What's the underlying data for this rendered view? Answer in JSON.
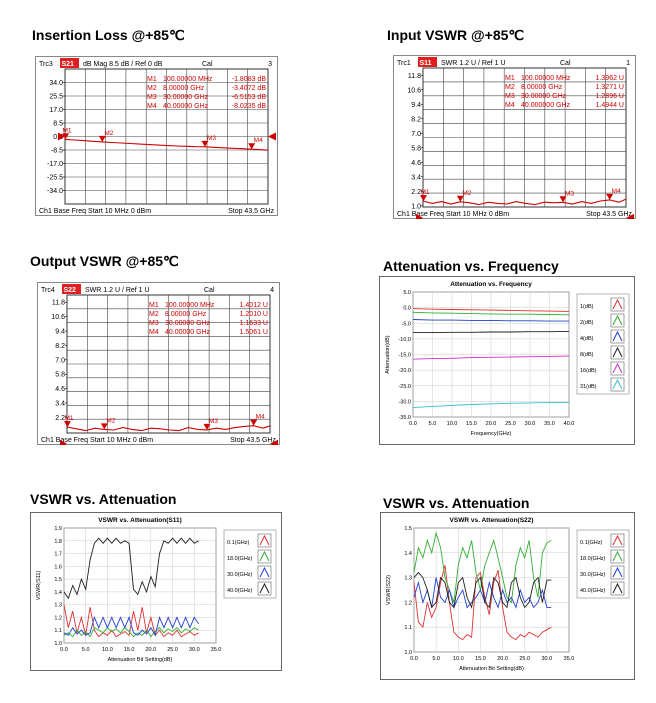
{
  "panels": [
    {
      "title": "Insertion Loss @+85℃"
    },
    {
      "title": "Input VSWR @+85℃"
    },
    {
      "title": "Output VSWR @+85℃"
    },
    {
      "title": "Attenuation vs. Frequency"
    },
    {
      "title": "VSWR vs. Attenuation"
    },
    {
      "title": "VSWR vs. Attenuation"
    }
  ],
  "chart_data": [
    {
      "type": "line",
      "trace": "Trc3",
      "param": "S21",
      "format": "dB Mag  8.5 dB /  Ref 0 dB",
      "cal": "Cal",
      "chan_num": "3",
      "y_ticks": [
        "34.0",
        "25.5",
        "17.0",
        "8.5",
        "0.0",
        "-8.5",
        "-17.0",
        "-25.5",
        "-34.0"
      ],
      "ylim": [
        -42.5,
        42.5
      ],
      "x_start": "Ch1  Base Freq  Start  10 MHz    0 dBm",
      "x_stop": "Stop  43.5 GHz",
      "markers": [
        {
          "name": "M1",
          "freq": "100.00000  MHz",
          "value": "-1.8083  dB"
        },
        {
          "name": "M2",
          "freq": "8.00000  GHz",
          "value": "-3.4072  dB"
        },
        {
          "name": "M3",
          "freq": "30.00000  GHz",
          "value": "-6.5153  dB"
        },
        {
          "name": "M4",
          "freq": "40.00000  GHz",
          "value": "-8.0235  dB"
        }
      ],
      "x_ghz": [
        0.01,
        2,
        4,
        6,
        8,
        10,
        12,
        14,
        16,
        18,
        20,
        22,
        24,
        26,
        28,
        30,
        32,
        34,
        36,
        38,
        40,
        42,
        43.5
      ],
      "y": [
        -1.8,
        -2.2,
        -2.6,
        -3.0,
        -3.4,
        -3.8,
        -4.1,
        -4.4,
        -4.8,
        -5.1,
        -5.4,
        -5.7,
        -6.0,
        -6.2,
        -6.4,
        -6.5,
        -6.8,
        -7.1,
        -7.4,
        -7.7,
        -8.0,
        -8.3,
        -8.6
      ]
    },
    {
      "type": "line",
      "trace": "Trc1",
      "param": "S11",
      "format": "SWR  1.2 U /  Ref 1 U",
      "cal": "Cal",
      "chan_num": "1",
      "y_ticks": [
        "11.8",
        "10.6",
        "9.4",
        "8.2",
        "7.0",
        "5.8",
        "4.6",
        "3.4",
        "2.2",
        "1.0"
      ],
      "ylim": [
        0.9,
        12.4
      ],
      "x_start": "Ch1  Base Freq  Start  10 MHz    0 dBm",
      "x_stop": "Stop  43.5 GHz",
      "markers": [
        {
          "name": "M1",
          "freq": "100.00000  MHz",
          "value": "1.3962  U"
        },
        {
          "name": "M2",
          "freq": "8.00000  GHz",
          "value": "1.3271  U"
        },
        {
          "name": "M3",
          "freq": "30.00000  GHz",
          "value": "1.2896  U"
        },
        {
          "name": "M4",
          "freq": "40.000000  GHz",
          "value": "1.4944  U"
        }
      ],
      "x_ghz": [
        0.01,
        2,
        4,
        6,
        8,
        10,
        12,
        14,
        16,
        18,
        20,
        22,
        24,
        26,
        28,
        30,
        32,
        34,
        36,
        38,
        40,
        42,
        43.5
      ],
      "y": [
        1.4,
        1.2,
        1.35,
        1.15,
        1.33,
        1.25,
        1.1,
        1.3,
        1.2,
        1.15,
        1.35,
        1.2,
        1.1,
        1.3,
        1.25,
        1.29,
        1.15,
        1.35,
        1.2,
        1.4,
        1.49,
        1.3,
        1.55
      ]
    },
    {
      "type": "line",
      "trace": "Trc4",
      "param": "S22",
      "format": "SWR  1.2 U /  Ref 1 U",
      "cal": "Cal",
      "chan_num": "4",
      "y_ticks": [
        "11.8",
        "10.6",
        "9.4",
        "8.2",
        "7.0",
        "5.8",
        "4.6",
        "3.4",
        "2.2"
      ],
      "ylim": [
        0.9,
        12.4
      ],
      "x_start": "Ch1  Base Freq  Start  10 MHz    0 dBm",
      "x_stop": "Stop  43.5 GHz",
      "markers": [
        {
          "name": "M1",
          "freq": "100.00000  MHz",
          "value": "1.4012  U"
        },
        {
          "name": "M2",
          "freq": "8.00000  GHz",
          "value": "1.2010  U"
        },
        {
          "name": "M3",
          "freq": "30.00000  GHz",
          "value": "1.1633  U"
        },
        {
          "name": "M4",
          "freq": "40.00000  GHz",
          "value": "1.5061  U"
        }
      ],
      "x_ghz": [
        0.01,
        2,
        4,
        6,
        8,
        10,
        12,
        14,
        16,
        18,
        20,
        22,
        24,
        26,
        28,
        30,
        32,
        34,
        36,
        38,
        40,
        42,
        43.5
      ],
      "y": [
        1.4,
        1.25,
        1.1,
        1.3,
        1.2,
        1.15,
        1.35,
        1.2,
        1.1,
        1.3,
        1.25,
        1.15,
        1.1,
        1.35,
        1.2,
        1.16,
        1.3,
        1.2,
        1.35,
        1.45,
        1.51,
        1.3,
        1.5
      ]
    },
    {
      "type": "line",
      "title": "Attenuation vs. Frequency",
      "xlabel": "Frequency(GHz)",
      "ylabel": "Attenuation(dB)",
      "xlim": [
        0,
        40
      ],
      "ylim": [
        -35,
        5
      ],
      "x_ticks": [
        "0.0",
        "5.0",
        "10.0",
        "15.0",
        "20.0",
        "25.0",
        "30.0",
        "35.0",
        "40.0"
      ],
      "y_ticks": [
        "5.0",
        "0.0",
        "-5.0",
        "-10.0",
        "-15.0",
        "-20.0",
        "-25.0",
        "-30.0",
        "-35.0"
      ],
      "x": [
        0,
        5,
        10,
        15,
        20,
        25,
        30,
        35,
        40
      ],
      "series": [
        {
          "name": "1(dB)",
          "color": "#e03030",
          "values": [
            -0.3,
            -0.5,
            -0.6,
            -0.7,
            -0.8,
            -0.9,
            -1.0,
            -1.1,
            -1.2
          ]
        },
        {
          "name": "2(dB)",
          "color": "#30b030",
          "values": [
            -1.5,
            -1.7,
            -1.8,
            -1.9,
            -2.0,
            -2.1,
            -2.1,
            -2.2,
            -2.3
          ]
        },
        {
          "name": "4(dB)",
          "color": "#2040d0",
          "values": [
            -3.8,
            -4.0,
            -4.0,
            -4.1,
            -4.1,
            -4.2,
            -4.2,
            -4.3,
            -4.3
          ]
        },
        {
          "name": "8(dB)",
          "color": "#202020",
          "values": [
            -8.0,
            -8.0,
            -7.9,
            -7.9,
            -7.8,
            -7.8,
            -7.7,
            -7.7,
            -7.6
          ]
        },
        {
          "name": "16(dB)",
          "color": "#d030d0",
          "values": [
            -16.5,
            -16.3,
            -16.2,
            -16.0,
            -15.9,
            -15.8,
            -15.7,
            -15.6,
            -15.5
          ]
        },
        {
          "name": "31(dB)",
          "color": "#30c0d0",
          "values": [
            -32.0,
            -31.6,
            -31.3,
            -31.0,
            -30.8,
            -30.6,
            -30.5,
            -30.4,
            -30.3
          ]
        }
      ]
    },
    {
      "type": "line",
      "title": "VSWR vs. Attenuation(S11)",
      "xlabel": "Attenuation Bit Setting(dB)",
      "ylabel": "VSWR(S11)",
      "xlim": [
        0,
        35
      ],
      "ylim": [
        1.0,
        1.9
      ],
      "x_ticks": [
        "0.0",
        "5.0",
        "10.0",
        "15.0",
        "20.0",
        "25.0",
        "30.0",
        "35.0"
      ],
      "y_ticks": [
        "1.9",
        "1.8",
        "1.7",
        "1.6",
        "1.5",
        "1.4",
        "1.3",
        "1.2",
        "1.1",
        "1.0"
      ],
      "x": [
        0,
        1,
        2,
        3,
        4,
        5,
        6,
        7,
        8,
        9,
        10,
        11,
        12,
        13,
        14,
        15,
        16,
        17,
        18,
        19,
        20,
        21,
        22,
        23,
        24,
        25,
        26,
        27,
        28,
        29,
        30,
        31
      ],
      "series": [
        {
          "name": "0.1(GHz)",
          "color": "#e03030",
          "values": [
            1.3,
            1.12,
            1.25,
            1.08,
            1.2,
            1.06,
            1.28,
            1.1,
            1.05,
            1.08,
            1.06,
            1.1,
            1.05,
            1.07,
            1.09,
            1.06,
            1.25,
            1.1,
            1.28,
            1.08,
            1.2,
            1.06,
            1.1,
            1.05,
            1.08,
            1.06,
            1.1,
            1.05,
            1.07,
            1.09,
            1.06,
            1.08
          ]
        },
        {
          "name": "18.0(GHz)",
          "color": "#30b030",
          "values": [
            1.06,
            1.08,
            1.05,
            1.1,
            1.06,
            1.09,
            1.05,
            1.12,
            1.1,
            1.08,
            1.12,
            1.09,
            1.11,
            1.08,
            1.12,
            1.09,
            1.05,
            1.08,
            1.06,
            1.1,
            1.05,
            1.09,
            1.12,
            1.08,
            1.11,
            1.09,
            1.12,
            1.08,
            1.11,
            1.09,
            1.12,
            1.1
          ]
        },
        {
          "name": "30.0(GHz)",
          "color": "#2040d0",
          "values": [
            1.08,
            1.06,
            1.12,
            1.07,
            1.1,
            1.06,
            1.08,
            1.2,
            1.12,
            1.2,
            1.12,
            1.2,
            1.12,
            1.2,
            1.12,
            1.2,
            1.08,
            1.06,
            1.1,
            1.07,
            1.12,
            1.06,
            1.2,
            1.12,
            1.2,
            1.12,
            1.2,
            1.12,
            1.2,
            1.12,
            1.2,
            1.15
          ]
        },
        {
          "name": "40.0(GHz)",
          "color": "#202020",
          "values": [
            1.4,
            1.35,
            1.45,
            1.38,
            1.5,
            1.42,
            1.65,
            1.78,
            1.82,
            1.78,
            1.82,
            1.78,
            1.82,
            1.78,
            1.8,
            1.78,
            1.42,
            1.38,
            1.48,
            1.4,
            1.52,
            1.44,
            1.7,
            1.8,
            1.78,
            1.82,
            1.78,
            1.82,
            1.78,
            1.82,
            1.78,
            1.8
          ]
        }
      ]
    },
    {
      "type": "line",
      "title": "VSWR vs. Attenuation(S22)",
      "xlabel": "Attenuation Bit Setting(dB)",
      "ylabel": "VSWR(S22)",
      "xlim": [
        0,
        35
      ],
      "ylim": [
        1.0,
        1.5
      ],
      "x_ticks": [
        "0.0",
        "5.0",
        "10.0",
        "15.0",
        "20.0",
        "25.0",
        "30.0",
        "35.0"
      ],
      "y_ticks": [
        "1.5",
        "1.4",
        "1.3",
        "1.2",
        "1.1",
        "1.0"
      ],
      "x": [
        0,
        1,
        2,
        3,
        4,
        5,
        6,
        7,
        8,
        9,
        10,
        11,
        12,
        13,
        14,
        15,
        16,
        17,
        18,
        19,
        20,
        21,
        22,
        23,
        24,
        25,
        26,
        27,
        28,
        29,
        30,
        31
      ],
      "series": [
        {
          "name": "0.1(GHz)",
          "color": "#e03030",
          "values": [
            1.28,
            1.12,
            1.1,
            1.2,
            1.14,
            1.18,
            1.28,
            1.35,
            1.2,
            1.08,
            1.06,
            1.05,
            1.07,
            1.06,
            1.3,
            1.32,
            1.22,
            1.15,
            1.28,
            1.33,
            1.18,
            1.08,
            1.06,
            1.05,
            1.07,
            1.06,
            1.08,
            1.07,
            1.06,
            1.08,
            1.09,
            1.1
          ]
        },
        {
          "name": "18.0(GHz)",
          "color": "#30b030",
          "values": [
            1.32,
            1.42,
            1.38,
            1.45,
            1.4,
            1.48,
            1.42,
            1.3,
            1.25,
            1.2,
            1.35,
            1.42,
            1.38,
            1.45,
            1.32,
            1.25,
            1.35,
            1.4,
            1.45,
            1.38,
            1.3,
            1.22,
            1.2,
            1.35,
            1.42,
            1.38,
            1.45,
            1.3,
            1.22,
            1.4,
            1.44,
            1.45
          ]
        },
        {
          "name": "30.0(GHz)",
          "color": "#2040d0",
          "values": [
            1.22,
            1.28,
            1.2,
            1.25,
            1.18,
            1.3,
            1.22,
            1.2,
            1.25,
            1.18,
            1.22,
            1.25,
            1.18,
            1.2,
            1.22,
            1.25,
            1.2,
            1.28,
            1.22,
            1.18,
            1.25,
            1.2,
            1.22,
            1.18,
            1.25,
            1.2,
            1.22,
            1.18,
            1.2,
            1.25,
            1.18,
            1.18
          ]
        },
        {
          "name": "40.0(GHz)",
          "color": "#202020",
          "values": [
            1.3,
            1.32,
            1.3,
            1.25,
            1.18,
            1.2,
            1.3,
            1.28,
            1.2,
            1.18,
            1.28,
            1.3,
            1.22,
            1.18,
            1.28,
            1.3,
            1.2,
            1.18,
            1.3,
            1.28,
            1.2,
            1.18,
            1.28,
            1.3,
            1.22,
            1.18,
            1.2,
            1.28,
            1.3,
            1.2,
            1.29,
            1.29
          ]
        }
      ]
    }
  ]
}
